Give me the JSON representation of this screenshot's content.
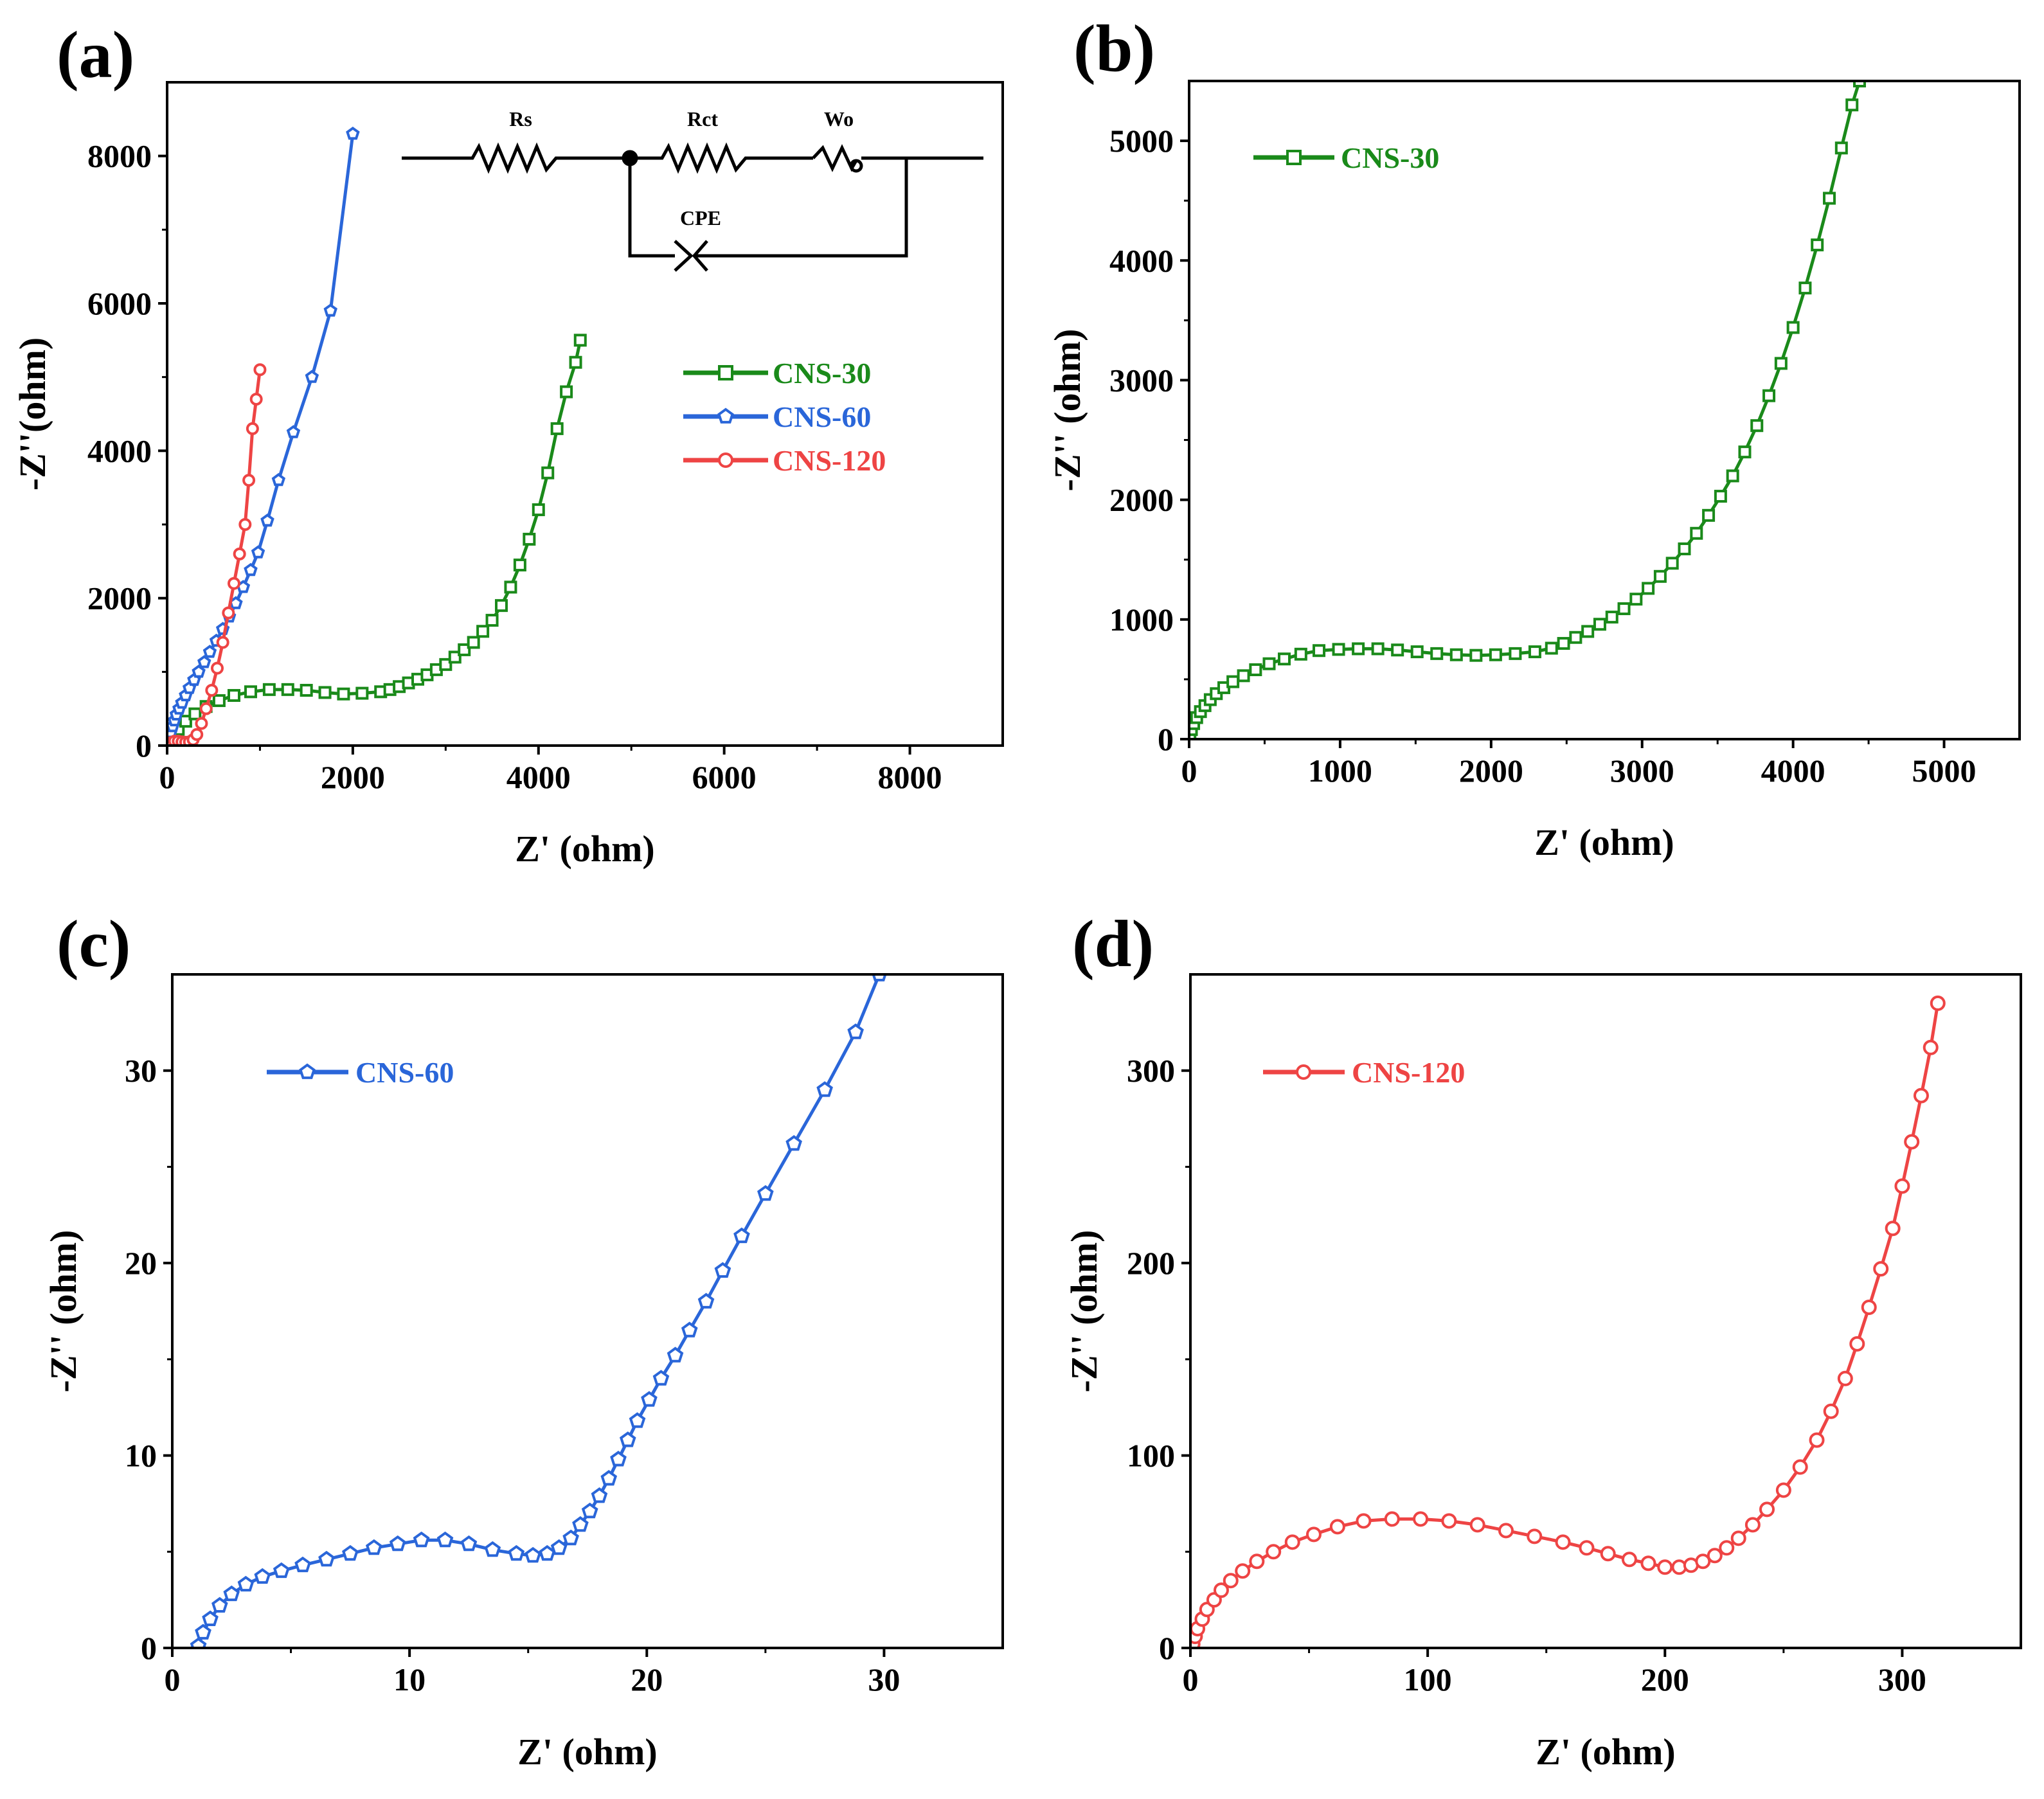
{
  "figure": {
    "colors": {
      "CNS-30": "#1a8a1a",
      "CNS-60": "#2a66d9",
      "CNS-120": "#ee4444",
      "axis": "#000000"
    },
    "circuit": {
      "labels": [
        "Rs",
        "Rct",
        "Wo",
        "CPE"
      ]
    }
  },
  "chart_data": [
    {
      "panel": "(a)",
      "type": "scatter",
      "title": "",
      "xlabel": "Z' (ohm)",
      "ylabel": "-Z''(ohm)",
      "xlim": [
        0,
        9000
      ],
      "ylim": [
        0,
        9000
      ],
      "xticks": [
        0,
        2000,
        4000,
        6000,
        8000
      ],
      "yticks": [
        0,
        2000,
        4000,
        6000,
        8000
      ],
      "legend_position": "center-right",
      "series": [
        {
          "name": "CNS-30",
          "marker": "square",
          "x": [
            20,
            60,
            120,
            200,
            300,
            420,
            560,
            720,
            900,
            1100,
            1300,
            1500,
            1700,
            1900,
            2100,
            2300,
            2400,
            2500,
            2600,
            2700,
            2800,
            2900,
            3000,
            3100,
            3200,
            3300,
            3400,
            3500,
            3600,
            3700,
            3800,
            3900,
            4000,
            4100,
            4200,
            4300,
            4400,
            4450
          ],
          "y": [
            50,
            120,
            220,
            330,
            430,
            530,
            610,
            680,
            730,
            760,
            760,
            750,
            720,
            700,
            710,
            730,
            760,
            800,
            850,
            900,
            960,
            1030,
            1100,
            1200,
            1300,
            1400,
            1550,
            1700,
            1900,
            2150,
            2450,
            2800,
            3200,
            3700,
            4300,
            4800,
            5200,
            5500
          ]
        },
        {
          "name": "CNS-60",
          "marker": "pentagon",
          "x": [
            5,
            20,
            40,
            60,
            80,
            100,
            130,
            160,
            200,
            240,
            290,
            340,
            400,
            460,
            530,
            600,
            670,
            740,
            820,
            900,
            980,
            1080,
            1200,
            1360,
            1560,
            1760,
            2000
          ],
          "y": [
            0,
            100,
            180,
            260,
            340,
            420,
            500,
            580,
            680,
            780,
            890,
            1000,
            1130,
            1270,
            1420,
            1580,
            1750,
            1930,
            2150,
            2380,
            2620,
            3050,
            3600,
            4250,
            5000,
            5900,
            8300
          ]
        },
        {
          "name": "CNS-120",
          "marker": "circle",
          "x": [
            10,
            40,
            80,
            120,
            160,
            200,
            240,
            280,
            320,
            370,
            420,
            480,
            540,
            600,
            660,
            720,
            780,
            840,
            880,
            920,
            960,
            1000
          ],
          "y": [
            0,
            40,
            60,
            60,
            50,
            45,
            50,
            80,
            150,
            300,
            500,
            750,
            1050,
            1400,
            1800,
            2200,
            2600,
            3000,
            3600,
            4300,
            4700,
            5100
          ]
        }
      ]
    },
    {
      "panel": "(b)",
      "type": "scatter",
      "title": "",
      "xlabel": "Z' (ohm)",
      "ylabel": "-Z'' (ohm)",
      "xlim": [
        0,
        5500
      ],
      "ylim": [
        0,
        5500
      ],
      "xticks": [
        0,
        1000,
        2000,
        3000,
        4000,
        5000
      ],
      "yticks": [
        0,
        1000,
        2000,
        3000,
        4000,
        5000
      ],
      "legend_position": "top-left",
      "series": [
        {
          "name": "CNS-30",
          "marker": "square",
          "x": [
            5,
            15,
            30,
            50,
            75,
            105,
            140,
            180,
            230,
            290,
            360,
            440,
            530,
            630,
            740,
            860,
            990,
            1120,
            1250,
            1380,
            1510,
            1640,
            1770,
            1900,
            2030,
            2160,
            2290,
            2400,
            2480,
            2560,
            2640,
            2720,
            2800,
            2880,
            2960,
            3040,
            3120,
            3200,
            3280,
            3360,
            3440,
            3520,
            3600,
            3680,
            3760,
            3840,
            3920,
            4000,
            4080,
            4160,
            4240,
            4320,
            4390,
            4440
          ],
          "y": [
            30,
            80,
            130,
            180,
            230,
            280,
            330,
            380,
            430,
            480,
            530,
            580,
            630,
            670,
            710,
            740,
            750,
            755,
            755,
            745,
            730,
            715,
            705,
            700,
            705,
            715,
            730,
            760,
            800,
            850,
            900,
            960,
            1020,
            1090,
            1170,
            1260,
            1360,
            1470,
            1590,
            1720,
            1870,
            2030,
            2200,
            2400,
            2620,
            2870,
            3140,
            3440,
            3770,
            4130,
            4520,
            4940,
            5300,
            5500
          ]
        }
      ]
    },
    {
      "panel": "(c)",
      "type": "scatter",
      "title": "",
      "xlabel": "Z' (ohm)",
      "ylabel": "-Z'' (ohm)",
      "xlim": [
        0,
        35
      ],
      "ylim": [
        0,
        35
      ],
      "xticks": [
        0,
        10,
        20,
        30
      ],
      "yticks": [
        0,
        10,
        20,
        30
      ],
      "legend_position": "top-left",
      "series": [
        {
          "name": "CNS-60",
          "marker": "pentagon",
          "x": [
            1.1,
            1.3,
            1.6,
            2.0,
            2.5,
            3.1,
            3.8,
            4.6,
            5.5,
            6.5,
            7.5,
            8.5,
            9.5,
            10.5,
            11.5,
            12.5,
            13.5,
            14.5,
            15.2,
            15.8,
            16.3,
            16.8,
            17.2,
            17.6,
            18.0,
            18.4,
            18.8,
            19.2,
            19.6,
            20.1,
            20.6,
            21.2,
            21.8,
            22.5,
            23.2,
            24.0,
            25.0,
            26.2,
            27.5,
            28.8,
            29.8
          ],
          "y": [
            0.1,
            0.8,
            1.5,
            2.2,
            2.8,
            3.3,
            3.7,
            4.0,
            4.3,
            4.6,
            4.9,
            5.2,
            5.4,
            5.6,
            5.6,
            5.4,
            5.1,
            4.9,
            4.8,
            4.9,
            5.2,
            5.7,
            6.4,
            7.1,
            7.9,
            8.8,
            9.8,
            10.8,
            11.8,
            12.9,
            14.0,
            15.2,
            16.5,
            18.0,
            19.6,
            21.4,
            23.6,
            26.2,
            29.0,
            32.0,
            35.0
          ]
        }
      ]
    },
    {
      "panel": "(d)",
      "type": "scatter",
      "title": "",
      "xlabel": "Z' (ohm)",
      "ylabel": "-Z'' (ohm)",
      "xlim": [
        0,
        350
      ],
      "ylim": [
        0,
        350
      ],
      "xticks": [
        0,
        100,
        200,
        300
      ],
      "yticks": [
        0,
        100,
        200,
        300
      ],
      "legend_position": "top-left",
      "series": [
        {
          "name": "CNS-120",
          "marker": "circle",
          "x": [
            1,
            2,
            3,
            5,
            7,
            10,
            13,
            17,
            22,
            28,
            35,
            43,
            52,
            62,
            73,
            85,
            97,
            109,
            121,
            133,
            145,
            157,
            167,
            176,
            185,
            193,
            200,
            206,
            211,
            216,
            221,
            226,
            231,
            237,
            243,
            250,
            257,
            264,
            270,
            276,
            281,
            286,
            291,
            296,
            300,
            304,
            308,
            312,
            315
          ],
          "y": [
            2,
            6,
            10,
            15,
            20,
            25,
            30,
            35,
            40,
            45,
            50,
            55,
            59,
            63,
            66,
            67,
            67,
            66,
            64,
            61,
            58,
            55,
            52,
            49,
            46,
            44,
            42,
            42,
            43,
            45,
            48,
            52,
            57,
            64,
            72,
            82,
            94,
            108,
            123,
            140,
            158,
            177,
            197,
            218,
            240,
            263,
            287,
            312,
            335
          ]
        }
      ]
    }
  ]
}
